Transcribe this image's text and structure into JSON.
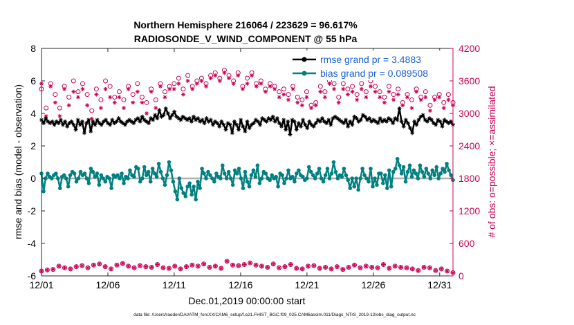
{
  "chart_data": {
    "type": "line",
    "title_line1": "Northern Hemisphere 216064 / 223629 = 96.617%",
    "title_line2": "RADIOSONDE_V_WIND_COMPONENT @ 55 hPa",
    "xlabel": "Dec.01,2019 00:00:00 start",
    "ylabel_left": "rmse and bias (model - observation)",
    "ylabel_right": "# of obs: o=possible; ×=assimilated",
    "footer": "data file: /Users/raeder/DAI/ATM_forcXX/CAM6_setup/f.e21.FHIST_BGC.f09_025.CAM6assim.011/Diags_NTrS_2019-12/obs_diag_output.nc",
    "xlim": [
      1,
      32
    ],
    "xticks": [
      1,
      6,
      11,
      16,
      21,
      26,
      31
    ],
    "xtick_labels": [
      "12/01",
      "12/06",
      "12/11",
      "12/16",
      "12/21",
      "12/26",
      "12/31"
    ],
    "ylim_left": [
      -6,
      8
    ],
    "yticks_left": [
      -6,
      -4,
      -2,
      0,
      2,
      4,
      6,
      8
    ],
    "ylim_right": [
      0,
      4200
    ],
    "yticks_right": [
      0,
      600,
      1200,
      1800,
      2400,
      3000,
      3600,
      4200
    ],
    "legend": [
      {
        "label": "rmse grand pr = 3.4883",
        "color": "#000000"
      },
      {
        "label": "bias grand pr = 0.089508",
        "color": "#008080"
      }
    ],
    "colors": {
      "rmse": "#000000",
      "bias": "#008080",
      "obs": "#cc0055",
      "zero": "#b0b0b0",
      "right_axis": "#cc0055",
      "legend_text": "#1a5fd9"
    },
    "series": [
      {
        "name": "rmse",
        "axis": "left",
        "values": [
          3.6,
          3.4,
          3.7,
          3.5,
          3.4,
          3.5,
          3.3,
          3.5,
          3.4,
          3.6,
          3.3,
          3.5,
          3.2,
          3.4,
          3.5,
          3.3,
          3.0,
          3.6,
          3.3,
          3.5,
          2.8,
          3.4,
          3.6,
          2.9,
          3.5,
          3.3,
          3.6,
          3.4,
          3.3,
          3.5,
          3.6,
          3.4,
          3.3,
          3.6,
          3.4,
          3.5,
          3.7,
          3.5,
          3.4,
          3.3,
          3.5,
          3.6,
          3.5,
          3.4,
          3.6,
          3.7,
          3.5,
          3.8,
          3.6,
          3.5,
          3.4,
          3.7,
          3.6,
          3.9,
          3.7,
          4.2,
          3.8,
          3.9,
          4.3,
          4.0,
          3.7,
          3.9,
          4.1,
          3.8,
          3.7,
          3.6,
          3.8,
          3.7,
          3.6,
          3.7,
          3.5,
          3.8,
          3.6,
          3.7,
          3.5,
          3.6,
          3.4,
          3.7,
          3.5,
          3.6,
          3.3,
          3.5,
          3.4,
          3.2,
          3.5,
          3.3,
          3.0,
          3.4,
          3.3,
          2.8,
          3.5,
          3.3,
          3.0,
          3.6,
          3.2,
          2.9,
          3.5,
          3.1,
          3.3,
          3.4,
          3.6,
          3.5,
          3.3,
          3.7,
          3.6,
          3.5,
          3.7,
          3.6,
          3.8,
          3.5,
          3.7,
          3.4,
          3.2,
          3.6,
          3.0,
          3.5,
          2.7,
          3.6,
          3.5,
          3.0,
          3.4,
          3.2,
          3.6,
          3.3,
          3.1,
          3.5,
          3.3,
          3.2,
          3.4,
          3.6,
          3.5,
          3.7,
          3.5,
          3.4,
          3.6,
          3.3,
          3.7,
          3.8,
          3.7,
          3.6,
          3.5,
          3.4,
          3.6,
          3.2,
          3.5,
          3.3,
          3.8,
          3.7,
          3.5,
          3.6,
          3.9,
          3.8,
          3.6,
          3.7,
          3.5,
          3.6,
          3.5,
          3.4,
          3.7,
          3.5,
          3.6,
          3.5,
          3.7,
          3.6,
          3.4,
          3.7,
          3.6,
          4.3,
          3.5,
          3.2,
          3.6,
          3.4,
          3.1,
          2.8,
          3.5,
          3.3,
          3.6,
          3.8,
          3.9,
          3.6,
          3.5,
          3.7,
          3.6,
          3.4,
          3.3,
          3.6,
          3.5,
          3.2,
          3.6,
          3.5,
          3.4,
          3.5,
          3.3
        ]
      },
      {
        "name": "bias",
        "axis": "left",
        "values": [
          0.3,
          -0.8,
          0.0,
          0.3,
          0.1,
          0.0,
          0.2,
          0.3,
          0.0,
          -0.6,
          0.1,
          0.2,
          0.0,
          -0.5,
          0.2,
          0.4,
          0.3,
          -0.2,
          0.0,
          0.4,
          0.2,
          0.3,
          0.0,
          -0.3,
          0.6,
          0.4,
          0.1,
          0.3,
          -0.4,
          0.2,
          0.0,
          -0.2,
          0.1,
          0.0,
          -0.6,
          0.2,
          0.1,
          0.2,
          0.0,
          0.3,
          -0.3,
          0.1,
          0.0,
          0.5,
          0.2,
          0.1,
          0.7,
          0.6,
          -0.2,
          0.0,
          0.7,
          0.2,
          0.4,
          -0.2,
          0.6,
          0.3,
          0.1,
          0.9,
          0.4,
          0.0,
          -0.4,
          0.2,
          1.0,
          0.5,
          -0.2,
          -0.8,
          -1.3,
          0.0,
          -0.6,
          -0.9,
          -1.1,
          -0.5,
          -0.3,
          -1.0,
          -0.5,
          -1.3,
          -0.2,
          -0.6,
          0.6,
          0.3,
          0.0,
          0.4,
          0.2,
          0.0,
          -0.2,
          0.3,
          0.1,
          0.0,
          0.8,
          0.3,
          0.0,
          0.4,
          0.0,
          -0.4,
          0.5,
          0.3,
          0.6,
          0.0,
          -0.6,
          0.4,
          -0.2,
          -0.5,
          0.2,
          0.5,
          0.1,
          0.8,
          -0.3,
          0.0,
          0.4,
          0.3,
          0.0,
          -0.1,
          0.2,
          0.0,
          0.1,
          -0.5,
          0.3,
          0.2,
          -0.3,
          0.0,
          0.5,
          0.0,
          0.1,
          -0.2,
          0.3,
          0.5,
          0.2,
          0.1,
          -0.1,
          0.0,
          0.7,
          0.4,
          0.2,
          0.0,
          0.3,
          0.6,
          0.0,
          -0.2,
          0.2,
          0.6,
          0.0,
          0.3,
          1.0,
          0.4,
          0.0,
          0.2,
          0.1,
          0.6,
          0.2,
          -0.1,
          -0.6,
          0.0,
          -0.5,
          0.0,
          -0.7,
          0.0,
          0.6,
          0.2,
          0.0,
          -0.2,
          0.6,
          -0.5,
          0.0,
          -0.4,
          0.3,
          0.3,
          -0.3,
          0.2,
          -0.6,
          0.5,
          -0.5,
          0.4,
          0.6,
          1.2,
          0.8,
          0.3,
          0.7,
          -0.2,
          0.4,
          0.8,
          0.1,
          0.5,
          0.3,
          0.0,
          0.8,
          0.4,
          0.1,
          0.6,
          0.3,
          0.0,
          0.5,
          0.2,
          0.7,
          0.0,
          0.3,
          0.6,
          0.4,
          0.9,
          0.5,
          0.2,
          -0.1
        ]
      },
      {
        "name": "obs_possible",
        "axis": "right",
        "values": [
          3450,
          3100,
          3550,
          3350,
          3100,
          3500,
          3300,
          3600,
          3400,
          3550,
          3350,
          3050,
          3450,
          3250,
          3600,
          3500,
          3300,
          3400,
          3250,
          3500,
          3350,
          3550,
          3300,
          3200,
          3450,
          3250,
          3550,
          3400,
          3500,
          3550,
          3650,
          3450,
          3700,
          3500,
          3600,
          3650,
          3550,
          3700,
          3750,
          3650,
          3800,
          3700,
          3600,
          3750,
          3500,
          3650,
          3750,
          3550,
          3600,
          3450,
          3550,
          3500,
          3400,
          3450,
          3350,
          3500,
          3300,
          3250,
          3400,
          3150,
          3200,
          3500,
          3400,
          3600,
          3550,
          3300,
          3550,
          3450,
          3500,
          3350,
          3550,
          3400,
          3600,
          3500,
          3400,
          3300,
          3500,
          3350,
          3450,
          3200,
          3350,
          3250,
          3450,
          3300,
          3400,
          3150,
          3300,
          3350,
          3200,
          3350,
          3200
        ]
      },
      {
        "name": "obs_assimilated",
        "axis": "right",
        "values": [
          3550,
          2950,
          3500,
          3200,
          2950,
          3450,
          3150,
          3400,
          3300,
          3450,
          3150,
          2900,
          3350,
          3100,
          3450,
          3300,
          3200,
          3300,
          3100,
          3450,
          3200,
          3400,
          3200,
          3000,
          3400,
          3100,
          3500,
          3300,
          3450,
          3450,
          3550,
          3350,
          3600,
          3450,
          3550,
          3600,
          3500,
          3650,
          3700,
          3600,
          3750,
          3650,
          3550,
          3700,
          3450,
          3550,
          3700,
          3500,
          3550,
          3400,
          3500,
          3450,
          3300,
          3350,
          3250,
          3450,
          3200,
          3150,
          3300,
          3100,
          3150,
          3400,
          3300,
          3550,
          3450,
          3200,
          3450,
          3350,
          3400,
          3250,
          3450,
          3300,
          3500,
          3400,
          3300,
          3200,
          3400,
          3250,
          3350,
          3150,
          3300,
          3100,
          3400,
          3250,
          3300,
          3050,
          3250,
          3300,
          3100,
          3250,
          3150
        ]
      },
      {
        "name": "obs_bottom_possible",
        "axis": "right",
        "values": [
          90,
          110,
          120,
          180,
          150,
          130,
          170,
          190,
          150,
          200,
          220,
          170,
          130,
          200,
          230,
          180,
          150,
          190,
          170,
          160,
          210,
          150,
          140,
          180,
          130,
          170,
          200,
          180,
          220,
          160,
          180,
          140,
          270,
          200,
          190,
          210,
          240,
          200,
          180,
          160,
          220,
          150,
          170,
          210,
          140,
          130,
          180,
          190,
          140,
          160,
          130,
          170,
          120,
          160,
          200,
          150,
          180,
          160,
          150,
          210,
          140,
          180,
          160,
          150,
          130,
          100,
          160,
          150,
          100,
          130,
          90,
          60
        ]
      }
    ]
  }
}
